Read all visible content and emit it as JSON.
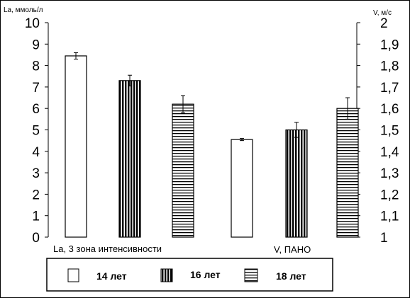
{
  "chart_data": {
    "type": "bar",
    "left_axis": {
      "label": "La, ммоль/л",
      "ylim": [
        0,
        10
      ],
      "ticks": [
        "0",
        "1",
        "2",
        "3",
        "4",
        "5",
        "6",
        "7",
        "8",
        "9",
        "10"
      ]
    },
    "right_axis": {
      "label": "V, м/с",
      "ylim": [
        1,
        2
      ],
      "ticks": [
        "1",
        "1,1",
        "1,2",
        "1,3",
        "1,4",
        "1,5",
        "1,6",
        "1,7",
        "1,8",
        "1,9",
        "2"
      ]
    },
    "groups": [
      {
        "label": "La, 3 зона интенсивности",
        "axis": "left",
        "values": [
          8.45,
          7.3,
          6.2
        ],
        "errors": [
          0.15,
          0.25,
          0.4
        ]
      },
      {
        "label": "V, ПАНО",
        "axis": "right",
        "values": [
          1.455,
          1.5,
          1.6
        ],
        "errors": [
          0.005,
          0.035,
          0.05
        ]
      }
    ],
    "series": [
      {
        "name": "14 лет",
        "pattern": "white"
      },
      {
        "name": "16 лет",
        "pattern": "vertical-stripes"
      },
      {
        "name": "18 лет",
        "pattern": "horizontal-stripes"
      }
    ],
    "colors": {
      "ink": "#000000",
      "fill": "#ffffff"
    },
    "grid": false,
    "legend_placement": "bottom"
  }
}
